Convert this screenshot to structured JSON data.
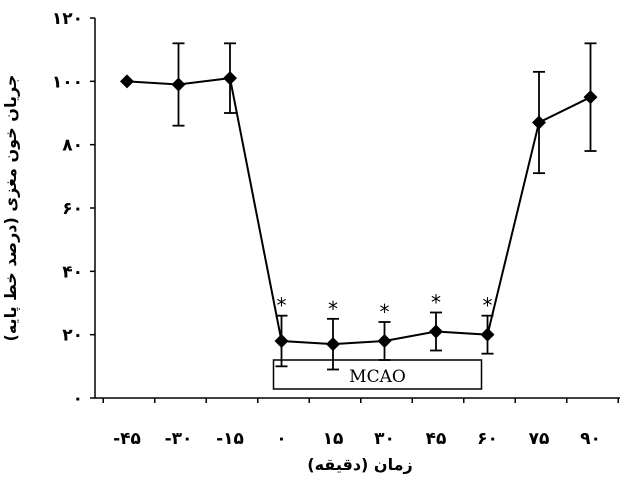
{
  "chart_data": {
    "type": "line",
    "x": [
      "-۴۵",
      "-۳۰",
      "-۱۵",
      "۰",
      "۱۵",
      "۳۰",
      "۴۵",
      "۶۰",
      "۷۵",
      "۹۰"
    ],
    "x_numeric": [
      -45,
      -30,
      -15,
      0,
      15,
      30,
      45,
      60,
      75,
      90
    ],
    "series": [
      {
        "values": [
          100,
          99,
          101,
          18,
          17,
          18,
          21,
          20,
          87,
          95
        ],
        "error": [
          0,
          13,
          11,
          8,
          8,
          6,
          6,
          6,
          16,
          17
        ],
        "color": "#000000",
        "marker": "diamond"
      }
    ],
    "xlabel": "زمان (دقیقه)",
    "ylabel": "جریان خون مغزی (درصد خط پایه)",
    "ylim": [
      0,
      120
    ],
    "yticks": [
      0,
      20,
      40,
      60,
      80,
      100,
      120
    ],
    "ytick_labels": [
      "۰",
      "۲۰",
      "۴۰",
      "۶۰",
      "۸۰",
      "۱۰۰",
      "۱۲۰"
    ],
    "significance_marker": "*",
    "significant_points": [
      0,
      15,
      30,
      45,
      60
    ],
    "annotation_box": {
      "label": "MCAO",
      "x_start": 0,
      "x_end": 60
    },
    "grid": false,
    "legend": "none"
  }
}
